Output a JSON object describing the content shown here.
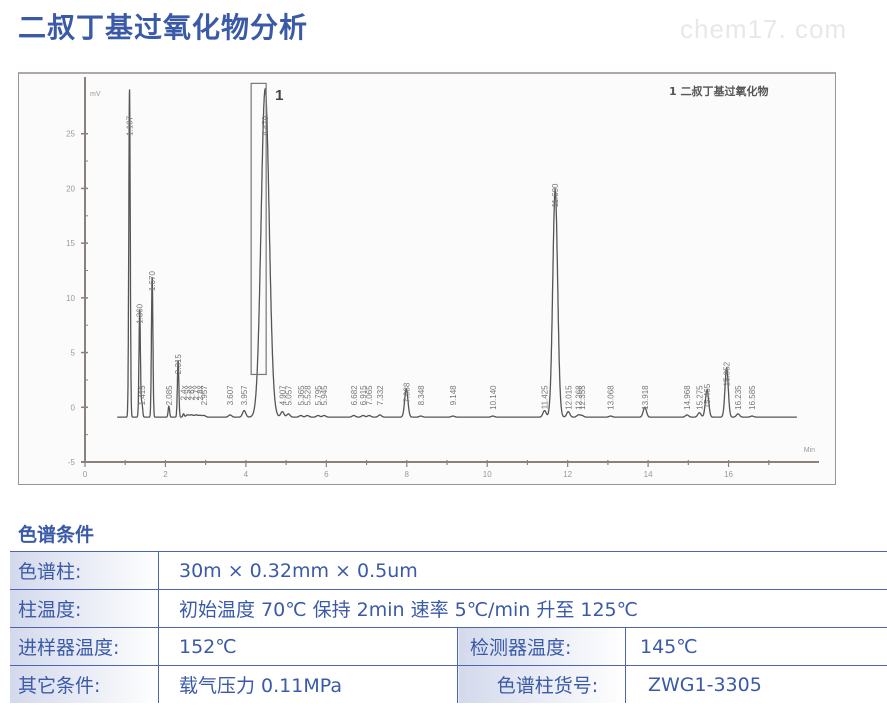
{
  "header": {
    "title": "二叔丁基过氧化物分析",
    "watermark": "chem17. com"
  },
  "chart_data": {
    "type": "line",
    "title": "",
    "legend": "1  二叔丁基过氧化物",
    "peak_marker": "1",
    "xlabel": "Min",
    "ylabel": "mV",
    "xlim": [
      0,
      18
    ],
    "ylim": [
      -5,
      30
    ],
    "x_ticks": [
      0,
      2,
      4,
      6,
      8,
      10,
      12,
      14,
      16
    ],
    "y_ticks": [
      -5,
      0,
      5,
      10,
      15,
      20,
      25
    ],
    "grid": false,
    "baseline_mV": -0.9,
    "peaks": [
      {
        "rt": 1.107,
        "height": 30.0,
        "label": "1.107"
      },
      {
        "rt": 1.36,
        "height": 9.8,
        "label": "1.360"
      },
      {
        "rt": 1.415,
        "height": 1.3,
        "label": "1.415"
      },
      {
        "rt": 1.67,
        "height": 12.8,
        "label": "1.670"
      },
      {
        "rt": 2.085,
        "height": 1.0,
        "label": "2.085"
      },
      {
        "rt": 2.315,
        "height": 5.2,
        "label": "2.315"
      },
      {
        "rt": 2.45,
        "height": 0.3,
        "label": "2.4x"
      },
      {
        "rt": 2.55,
        "height": 0.2,
        "label": "2.5x"
      },
      {
        "rt": 2.65,
        "height": 0.2,
        "label": "2.6x"
      },
      {
        "rt": 2.76,
        "height": 0.2,
        "label": "2.7x"
      },
      {
        "rt": 2.86,
        "height": 0.15,
        "label": "2.8x"
      },
      {
        "rt": 2.957,
        "height": 0.15,
        "label": "2.957"
      },
      {
        "rt": 3.607,
        "height": 0.2,
        "label": "3.607"
      },
      {
        "rt": 3.957,
        "height": 0.6,
        "label": "3.957"
      },
      {
        "rt": 4.479,
        "height": 30.0,
        "label": "4.479",
        "compound": "1"
      },
      {
        "rt": 4.907,
        "height": 0.5,
        "label": "4.907"
      },
      {
        "rt": 5.057,
        "height": 0.3,
        "label": "5.057"
      },
      {
        "rt": 5.365,
        "height": 0.15,
        "label": "5.365"
      },
      {
        "rt": 5.528,
        "height": 0.15,
        "label": "5.528"
      },
      {
        "rt": 5.795,
        "height": 0.15,
        "label": "5.795"
      },
      {
        "rt": 5.945,
        "height": 0.15,
        "label": "5.945"
      },
      {
        "rt": 6.682,
        "height": 0.15,
        "label": "6.682"
      },
      {
        "rt": 6.915,
        "height": 0.15,
        "label": "6.915"
      },
      {
        "rt": 7.065,
        "height": 0.15,
        "label": "7.065"
      },
      {
        "rt": 7.332,
        "height": 0.2,
        "label": "7.332"
      },
      {
        "rt": 7.988,
        "height": 2.6,
        "label": "7.988"
      },
      {
        "rt": 8.348,
        "height": 0.1,
        "label": "8.348"
      },
      {
        "rt": 9.148,
        "height": 0.1,
        "label": "9.148"
      },
      {
        "rt": 10.14,
        "height": 0.1,
        "label": "10.140"
      },
      {
        "rt": 11.425,
        "height": 0.6,
        "label": "11.425"
      },
      {
        "rt": 11.69,
        "height": 20.8,
        "label": "11.690"
      },
      {
        "rt": 12.015,
        "height": 0.5,
        "label": "12.015"
      },
      {
        "rt": 12.268,
        "height": 0.2,
        "label": "12.268"
      },
      {
        "rt": 12.355,
        "height": 0.15,
        "label": "12.355"
      },
      {
        "rt": 13.068,
        "height": 0.1,
        "label": "13.068"
      },
      {
        "rt": 13.918,
        "height": 0.9,
        "label": "13.918"
      },
      {
        "rt": 14.968,
        "height": 0.2,
        "label": "14.968"
      },
      {
        "rt": 15.275,
        "height": 0.4,
        "label": "15.275"
      },
      {
        "rt": 15.465,
        "height": 2.5,
        "label": "15.465"
      },
      {
        "rt": 15.952,
        "height": 4.5,
        "label": "15.952"
      },
      {
        "rt": 16.235,
        "height": 0.3,
        "label": "16.235"
      },
      {
        "rt": 16.585,
        "height": 0.1,
        "label": "16.585"
      }
    ]
  },
  "conditions": {
    "title": "色谱条件",
    "rows": [
      {
        "label": "色谱柱:",
        "value": "30m × 0.32mm × 0.5um"
      },
      {
        "label": "柱温度:",
        "value": "初始温度 70℃  保持 2min  速率  5℃/min 升至 125℃"
      },
      {
        "label": "进样器温度:",
        "value": "152℃",
        "label2": "检测器温度:",
        "value2": "145℃"
      },
      {
        "label": "其它条件:",
        "value": "载气压力 0.11MPa",
        "label2": "色谱柱货号:",
        "value2": "ZWG1-3305"
      }
    ]
  }
}
